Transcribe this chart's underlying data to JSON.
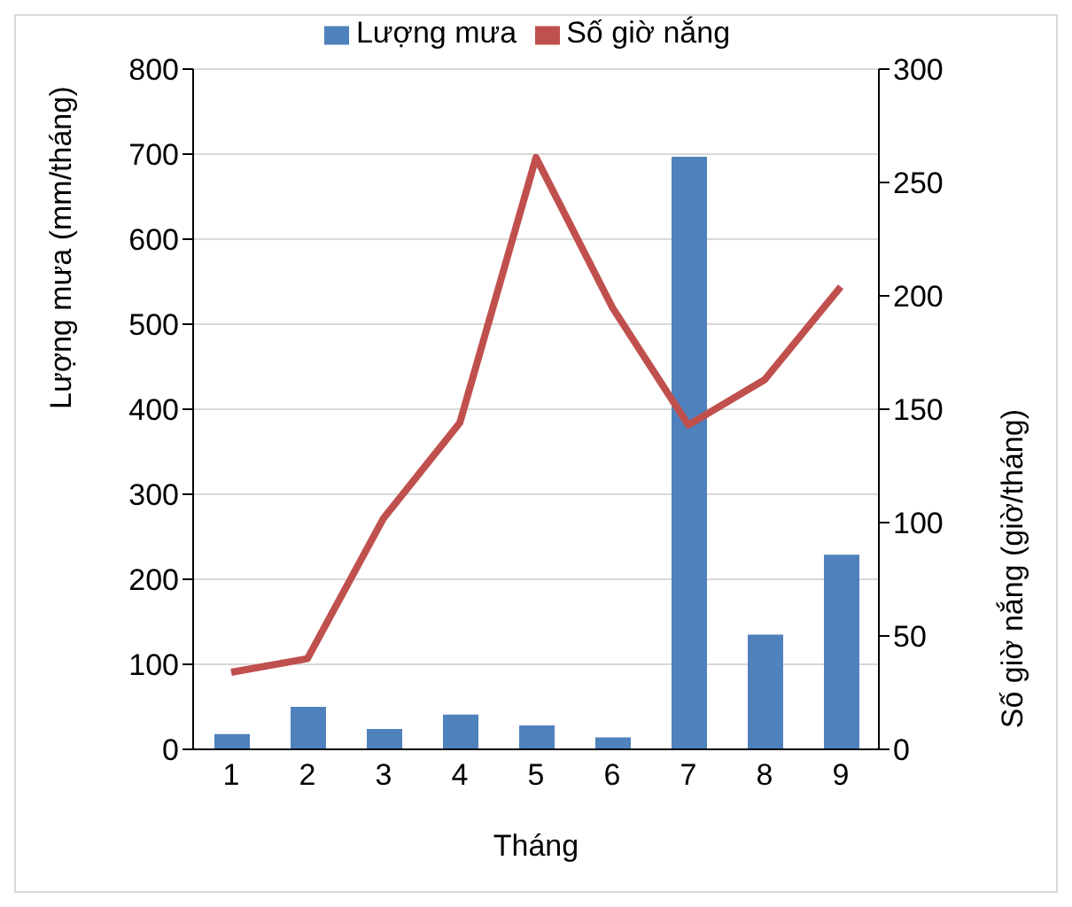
{
  "chart_data": {
    "type": "bar",
    "xlabel": "Tháng",
    "ylabel": "Lượng mưa (mm/tháng)",
    "y2label": "Số giờ nắng (giờ/tháng)",
    "categories": [
      "1",
      "2",
      "3",
      "4",
      "5",
      "6",
      "7",
      "8",
      "9"
    ],
    "series": [
      {
        "name": "Lượng mưa",
        "color": "#4f81bd",
        "values": [
          18,
          50,
          24,
          41,
          28,
          14,
          697,
          135,
          229
        ]
      },
      {
        "name": "Số giờ nắng",
        "type": "line",
        "axis": "y2",
        "color": "#c0504d",
        "values": [
          34,
          40,
          102,
          144,
          261,
          195,
          143,
          163,
          204
        ]
      }
    ],
    "ylim": [
      0,
      800
    ],
    "yticks": [
      0,
      100,
      200,
      300,
      400,
      500,
      600,
      700,
      800
    ],
    "y2lim": [
      0,
      300
    ],
    "y2ticks": [
      0,
      50,
      100,
      150,
      200,
      250,
      300
    ],
    "grid": "y",
    "legend": "top",
    "marker": "none"
  }
}
